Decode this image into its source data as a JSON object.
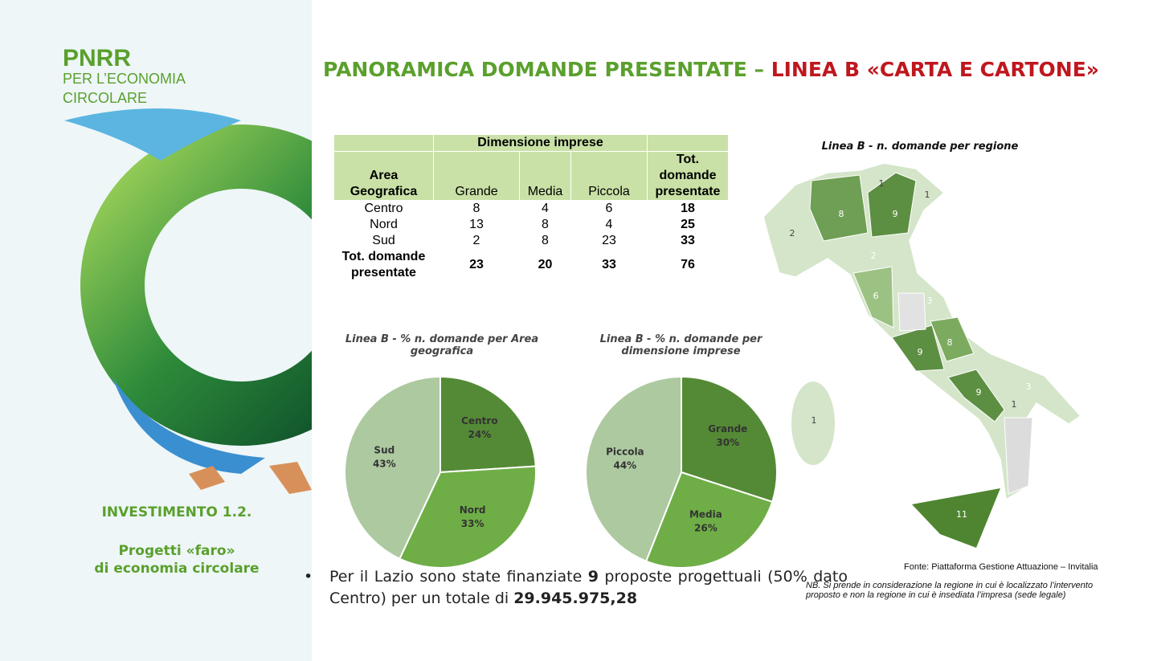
{
  "slide": {
    "brand": "PNRR",
    "brand_sub": [
      "PER L’ECONOMIA",
      "CIRCOLARE"
    ],
    "investment": "INVESTIMENTO 1.2.",
    "project": [
      "Progetti «faro»",
      "di economia circolare"
    ],
    "title": [
      "PANORAMICA DOMANDE PRESENTATE – ",
      "LINEA B «CARTA E CARTONE»"
    ]
  },
  "table": {
    "group_header": "Dimensione imprese",
    "columns": [
      "Area Geografica",
      "Grande",
      "Media",
      "Piccola",
      "Tot. domande presentate"
    ],
    "rows": [
      [
        "Centro",
        8,
        4,
        6,
        18
      ],
      [
        "Nord",
        13,
        8,
        4,
        25
      ],
      [
        "Sud",
        2,
        8,
        23,
        33
      ],
      [
        "Tot. domande presentate",
        23,
        20,
        33,
        76
      ]
    ]
  },
  "chart_data": [
    {
      "type": "pie",
      "title": "Linea B - % n. domande per Area geografica",
      "categories": [
        "Centro",
        "Nord",
        "Sud"
      ],
      "values": [
        24,
        33,
        43
      ],
      "value_labels": [
        "24%",
        "33%",
        "43%"
      ],
      "colors": [
        "#548a35",
        "#6fae47",
        "#adc9a0"
      ]
    },
    {
      "type": "pie",
      "title": "Linea B - % n. domande per dimensione imprese",
      "categories": [
        "Grande",
        "Media",
        "Piccola"
      ],
      "values": [
        30,
        26,
        44
      ],
      "value_labels": [
        "30%",
        "26%",
        "44%"
      ],
      "colors": [
        "#548a35",
        "#6fae47",
        "#adc9a0"
      ]
    }
  ],
  "map": {
    "title": "Linea B - n. domande per regione",
    "regions": [
      1,
      1,
      8,
      9,
      2,
      2,
      6,
      3,
      8,
      9,
      9,
      1,
      3,
      1,
      11
    ],
    "source": "Fonte: Piattaforma Gestione Attuazione –  Invitalia",
    "note": "NB. Si prende in considerazione la regione in cui è localizzato l’intervento proposto e non la regione in cui è insediata l’impresa (sede legale)"
  },
  "bullet": [
    {
      "text": "Per il Lazio sono state finanziate ",
      "bold": false
    },
    {
      "text": "9",
      "bold": true
    },
    {
      "text": " proposte progettuali (50% dato Centro) per un totale di ",
      "bold": false
    },
    {
      "text": "29.945.975,28",
      "bold": true
    }
  ]
}
